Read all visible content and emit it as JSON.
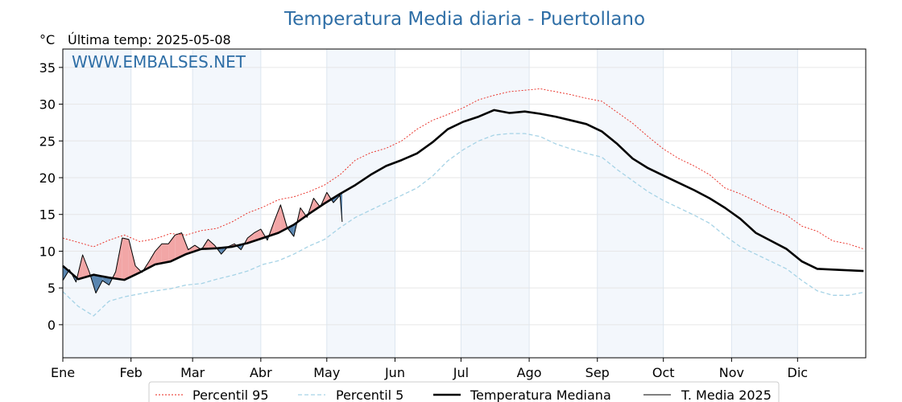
{
  "chart_data": {
    "type": "line",
    "title": "Temperatura Media diaria - Puertollano",
    "unit_label": "°C",
    "last_temp_label": "Última temp: 2025-05-08",
    "watermark": "WWW.EMBALSES.NET",
    "ylim": [
      -4.5,
      37.5
    ],
    "yticks": [
      0,
      5,
      10,
      15,
      20,
      25,
      30,
      35
    ],
    "xlim": [
      1,
      366
    ],
    "month_labels": [
      "Ene",
      "Feb",
      "Mar",
      "Abr",
      "May",
      "Jun",
      "Jul",
      "Ago",
      "Sep",
      "Oct",
      "Nov",
      "Dic"
    ],
    "month_start_days": [
      1,
      32,
      60,
      91,
      121,
      152,
      182,
      213,
      244,
      274,
      305,
      335
    ],
    "grid": true,
    "legend_position": "bottom",
    "legend": [
      "Percentil 95",
      "Percentil 5",
      "Temperatura Mediana",
      "T. Media 2025"
    ],
    "colors": {
      "p95": "#e8231a",
      "p5": "#a6d3e6",
      "median": "#000000",
      "t2025": "#000000",
      "above": "#f2a6a6",
      "below": "#5a86b0",
      "band": "#f3f7fc",
      "title": "#2e6ea6"
    },
    "series": [
      {
        "key": "p95",
        "name": "Percentil 95",
        "x": [
          1,
          8,
          15,
          22,
          29,
          36,
          43,
          50,
          57,
          64,
          71,
          78,
          85,
          92,
          99,
          106,
          113,
          120,
          127,
          134,
          141,
          148,
          155,
          162,
          169,
          176,
          183,
          190,
          197,
          204,
          211,
          218,
          225,
          232,
          239,
          246,
          253,
          260,
          267,
          274,
          281,
          288,
          295,
          302,
          309,
          316,
          323,
          330,
          337,
          344,
          351,
          358,
          365
        ],
        "values": [
          11.8,
          11.2,
          10.6,
          11.5,
          12.2,
          11.3,
          11.7,
          12.4,
          12.2,
          12.8,
          13.1,
          14.0,
          15.2,
          16.0,
          17.0,
          17.4,
          18.1,
          19.0,
          20.4,
          22.4,
          23.4,
          24.0,
          25.0,
          26.6,
          27.8,
          28.6,
          29.5,
          30.6,
          31.2,
          31.7,
          31.9,
          32.1,
          31.7,
          31.3,
          30.8,
          30.4,
          28.9,
          27.4,
          25.6,
          23.9,
          22.6,
          21.6,
          20.4,
          18.6,
          17.8,
          16.8,
          15.7,
          14.9,
          13.4,
          12.7,
          11.4,
          11.0,
          10.3
        ]
      },
      {
        "key": "p5",
        "name": "Percentil 5",
        "x": [
          1,
          8,
          15,
          22,
          29,
          36,
          43,
          50,
          57,
          64,
          71,
          78,
          85,
          92,
          99,
          106,
          113,
          120,
          127,
          134,
          141,
          148,
          155,
          162,
          169,
          176,
          183,
          190,
          197,
          204,
          211,
          218,
          225,
          232,
          239,
          246,
          253,
          260,
          267,
          274,
          281,
          288,
          295,
          302,
          309,
          316,
          323,
          330,
          337,
          344,
          351,
          358,
          365
        ],
        "values": [
          4.5,
          2.5,
          1.2,
          3.2,
          3.8,
          4.2,
          4.6,
          4.9,
          5.4,
          5.6,
          6.2,
          6.7,
          7.3,
          8.2,
          8.7,
          9.6,
          10.7,
          11.6,
          13.2,
          14.6,
          15.6,
          16.6,
          17.6,
          18.6,
          20.2,
          22.3,
          23.8,
          25.0,
          25.8,
          26.0,
          26.0,
          25.6,
          24.6,
          23.9,
          23.3,
          22.8,
          21.1,
          19.6,
          18.1,
          16.9,
          15.9,
          14.9,
          13.8,
          12.1,
          10.6,
          9.6,
          8.6,
          7.6,
          6.0,
          4.6,
          4.0,
          4.0,
          4.4
        ]
      },
      {
        "key": "median",
        "name": "Temperatura Mediana",
        "x": [
          1,
          8,
          15,
          22,
          29,
          36,
          43,
          50,
          57,
          64,
          71,
          78,
          85,
          92,
          99,
          106,
          113,
          120,
          127,
          134,
          141,
          148,
          155,
          162,
          169,
          176,
          183,
          190,
          197,
          204,
          211,
          218,
          225,
          232,
          239,
          246,
          253,
          260,
          267,
          274,
          281,
          288,
          295,
          302,
          309,
          316,
          323,
          330,
          337,
          344,
          351,
          358,
          365
        ],
        "values": [
          8.0,
          6.2,
          6.8,
          6.4,
          6.1,
          7.1,
          8.2,
          8.6,
          9.6,
          10.3,
          10.4,
          10.6,
          11.1,
          11.8,
          12.5,
          13.6,
          15.1,
          16.5,
          17.8,
          19.0,
          20.4,
          21.6,
          22.4,
          23.3,
          24.8,
          26.6,
          27.6,
          28.3,
          29.2,
          28.8,
          29.0,
          28.7,
          28.3,
          27.8,
          27.3,
          26.3,
          24.6,
          22.6,
          21.3,
          20.3,
          19.3,
          18.3,
          17.2,
          15.9,
          14.4,
          12.5,
          11.4,
          10.3,
          8.6,
          7.6,
          7.5,
          7.4,
          7.3
        ]
      },
      {
        "key": "t2025",
        "name": "T. Media 2025",
        "x": [
          1,
          4,
          7,
          10,
          13,
          16,
          19,
          22,
          25,
          28,
          31,
          34,
          37,
          40,
          43,
          46,
          49,
          52,
          55,
          58,
          61,
          64,
          67,
          70,
          73,
          76,
          79,
          82,
          85,
          88,
          91,
          94,
          97,
          100,
          103,
          106,
          109,
          112,
          115,
          118,
          121,
          124,
          127,
          128
        ],
        "values": [
          6.0,
          7.5,
          5.8,
          9.5,
          7.2,
          4.3,
          6.0,
          5.4,
          7.2,
          11.8,
          11.6,
          8.0,
          7.1,
          8.5,
          10.0,
          11.0,
          11.0,
          12.2,
          12.5,
          10.2,
          10.8,
          10.2,
          11.6,
          10.8,
          9.6,
          10.6,
          11.0,
          10.2,
          11.8,
          12.5,
          13.0,
          11.5,
          14.0,
          16.3,
          13.2,
          12.0,
          15.9,
          14.6,
          17.2,
          16.0,
          18.0,
          16.6,
          17.6,
          14.0
        ]
      }
    ]
  }
}
